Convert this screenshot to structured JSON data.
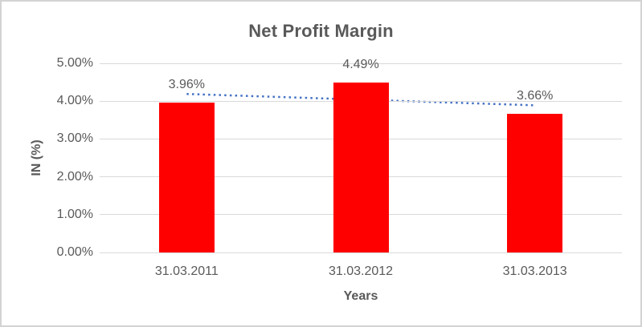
{
  "chart_data": {
    "type": "bar",
    "title": "Net Profit Margin",
    "xlabel": "Years",
    "ylabel": "IN (%)",
    "categories": [
      "31.03.2011",
      "31.03.2012",
      "31.03.2013"
    ],
    "values": [
      3.96,
      4.49,
      3.66
    ],
    "data_labels": [
      "3.96%",
      "4.49%",
      "3.66%"
    ],
    "ylim": [
      0,
      5
    ],
    "ytick_step": 1,
    "ytick_labels": [
      "0.00%",
      "1.00%",
      "2.00%",
      "3.00%",
      "4.00%",
      "5.00%"
    ],
    "grid": true,
    "legend": false,
    "bar_color": "#ff0000",
    "trendline": {
      "type": "linear",
      "style": "dotted",
      "color": "#4472c4",
      "start_value": 4.19,
      "end_value": 3.89
    },
    "colors": {
      "title_text": "#595959",
      "axis_text": "#595959",
      "gridline": "#d9d9d9",
      "frame_border": "#d3d3d3"
    }
  }
}
